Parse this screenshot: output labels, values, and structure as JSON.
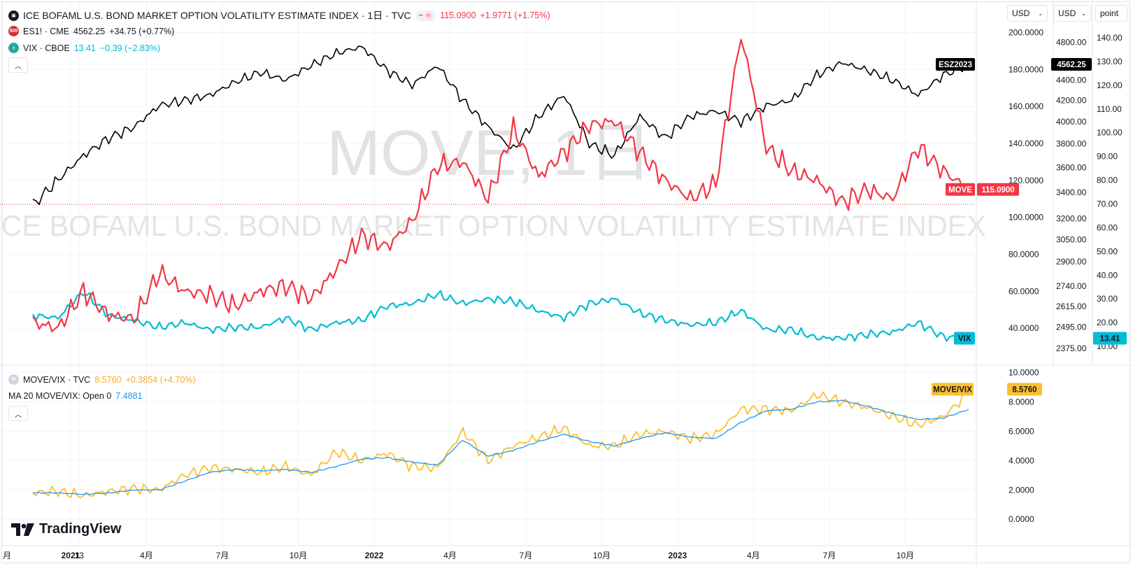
{
  "header": {
    "title": "ICE BOFAML U.S. BOND MARKET OPTION VOLATILITY ESTIMATE INDEX · 1日 · TVC",
    "main_value": "115.0900",
    "main_change": "+1.9771 (+1.75%)"
  },
  "watermark": {
    "big": "MOVE, 1日",
    "long": "ICE BOFAML U.S. BOND MARKET OPTION VOLATILITY ESTIMATE INDEX"
  },
  "legend": {
    "es": {
      "icon_text": "500",
      "name": "ES1! · CME",
      "value": "4562.25",
      "change": "+34.75 (+0.77%)"
    },
    "vix": {
      "name": "VIX · CBOE",
      "value": "13.41",
      "change": "−0.39 (−2.83%)"
    },
    "ratio": {
      "name": "MOVE/VIX · TVC",
      "value": "8.5760",
      "change": "+0.3854 (+4.70%)"
    },
    "ma": {
      "name": "MA 20 MOVE/VIX: Open 0",
      "value": "7.4881"
    }
  },
  "scales": {
    "currency_left": "USD",
    "currency_right": "USD",
    "points": "point"
  },
  "branding": {
    "name": "TradingView"
  },
  "colors": {
    "move": "#f23645",
    "es": "#000000",
    "vix": "#00bcd4",
    "ratio": "#fbc02d",
    "ma": "#2196f3",
    "grid": "#f0f3fa"
  },
  "chart_data": [
    {
      "type": "line",
      "title": "ICE BOFAML U.S. BOND MARKET OPTION VOLATILITY ESTIMATE INDEX · 1日 · TVC",
      "x_ticks": [
        "月",
        "13",
        "2021",
        "4月",
        "7月",
        "10月",
        "2022",
        "4月",
        "7月",
        "10月",
        "2023",
        "4月",
        "7月",
        "10月"
      ],
      "move_axis": {
        "ticks": [
          "200.0000",
          "180.0000",
          "160.0000",
          "140.0000",
          "120.0000",
          "100.0000",
          "80.0000",
          "60.0000",
          "40.0000"
        ],
        "range": [
          20,
          210
        ]
      },
      "es_axis": {
        "log": true,
        "ticks": [
          "4800.00",
          "4400.00",
          "4200.00",
          "4000.00",
          "3800.00",
          "3600.00",
          "3400.00",
          "3200.00",
          "3050.00",
          "2900.00",
          "2740.00",
          "2615.00",
          "2495.00",
          "2375.00"
        ]
      },
      "vix_axis": {
        "ticks": [
          "140.00",
          "130.00",
          "120.00",
          "110.00",
          "100.00",
          "90.00",
          "80.00",
          "70.00",
          "60.00",
          "50.00",
          "40.00",
          "30.00",
          "20.00",
          "10.00"
        ],
        "range": [
          5,
          145
        ]
      },
      "series": [
        {
          "name": "MOVE",
          "last_label": "115.0900",
          "values": [
            {
              "x": "2020-11",
              "y": 43
            },
            {
              "x": "2020-12",
              "y": 40
            },
            {
              "x": "2021-01",
              "y": 60
            },
            {
              "x": "2021-02",
              "y": 47
            },
            {
              "x": "2021-03",
              "y": 45
            },
            {
              "x": "2021-04",
              "y": 70
            },
            {
              "x": "2021-05",
              "y": 60
            },
            {
              "x": "2021-06",
              "y": 58
            },
            {
              "x": "2021-07",
              "y": 52
            },
            {
              "x": "2021-08",
              "y": 60
            },
            {
              "x": "2021-09",
              "y": 63
            },
            {
              "x": "2021-10",
              "y": 56
            },
            {
              "x": "2021-11",
              "y": 72
            },
            {
              "x": "2021-12",
              "y": 90
            },
            {
              "x": "2022-01",
              "y": 84
            },
            {
              "x": "2022-02",
              "y": 98
            },
            {
              "x": "2022-03",
              "y": 128
            },
            {
              "x": "2022-04",
              "y": 130
            },
            {
              "x": "2022-05",
              "y": 110
            },
            {
              "x": "2022-06",
              "y": 148
            },
            {
              "x": "2022-07",
              "y": 122
            },
            {
              "x": "2022-08",
              "y": 135
            },
            {
              "x": "2022-09",
              "y": 150
            },
            {
              "x": "2022-10",
              "y": 152
            },
            {
              "x": "2022-11",
              "y": 135
            },
            {
              "x": "2022-12",
              "y": 120
            },
            {
              "x": "2023-01",
              "y": 110
            },
            {
              "x": "2023-02",
              "y": 118
            },
            {
              "x": "2023-03",
              "y": 198
            },
            {
              "x": "2023-04",
              "y": 138
            },
            {
              "x": "2023-05",
              "y": 125
            },
            {
              "x": "2023-06",
              "y": 120
            },
            {
              "x": "2023-07",
              "y": 108
            },
            {
              "x": "2023-08",
              "y": 115
            },
            {
              "x": "2023-09",
              "y": 110
            },
            {
              "x": "2023-10",
              "y": 138
            },
            {
              "x": "2023-11",
              "y": 125
            },
            {
              "x": "2023-12",
              "y": 115.09
            }
          ]
        },
        {
          "name": "ESZ2023",
          "last_label": "4562.25",
          "values": [
            {
              "x": "2020-11",
              "y": 3300
            },
            {
              "x": "2020-12",
              "y": 3500
            },
            {
              "x": "2021-01",
              "y": 3700
            },
            {
              "x": "2021-02",
              "y": 3850
            },
            {
              "x": "2021-03",
              "y": 3950
            },
            {
              "x": "2021-04",
              "y": 4150
            },
            {
              "x": "2021-05",
              "y": 4200
            },
            {
              "x": "2021-06",
              "y": 4250
            },
            {
              "x": "2021-07",
              "y": 4380
            },
            {
              "x": "2021-08",
              "y": 4480
            },
            {
              "x": "2021-09",
              "y": 4400
            },
            {
              "x": "2021-10",
              "y": 4550
            },
            {
              "x": "2021-11",
              "y": 4680
            },
            {
              "x": "2021-12",
              "y": 4750
            },
            {
              "x": "2022-01",
              "y": 4500
            },
            {
              "x": "2022-02",
              "y": 4350
            },
            {
              "x": "2022-03",
              "y": 4550
            },
            {
              "x": "2022-04",
              "y": 4200
            },
            {
              "x": "2022-05",
              "y": 3950
            },
            {
              "x": "2022-06",
              "y": 3750
            },
            {
              "x": "2022-07",
              "y": 4050
            },
            {
              "x": "2022-08",
              "y": 4250
            },
            {
              "x": "2022-09",
              "y": 3800
            },
            {
              "x": "2022-10",
              "y": 3700
            },
            {
              "x": "2022-11",
              "y": 4050
            },
            {
              "x": "2022-12",
              "y": 3850
            },
            {
              "x": "2023-01",
              "y": 4050
            },
            {
              "x": "2023-02",
              "y": 4100
            },
            {
              "x": "2023-03",
              "y": 4000
            },
            {
              "x": "2023-04",
              "y": 4150
            },
            {
              "x": "2023-05",
              "y": 4200
            },
            {
              "x": "2023-06",
              "y": 4450
            },
            {
              "x": "2023-07",
              "y": 4580
            },
            {
              "x": "2023-08",
              "y": 4500
            },
            {
              "x": "2023-09",
              "y": 4400
            },
            {
              "x": "2023-10",
              "y": 4250
            },
            {
              "x": "2023-11",
              "y": 4450
            },
            {
              "x": "2023-12",
              "y": 4562.25
            }
          ]
        },
        {
          "name": "VIX",
          "last_label": "13.41",
          "values": [
            {
              "x": "2020-11",
              "y": 23
            },
            {
              "x": "2020-12",
              "y": 22
            },
            {
              "x": "2021-01",
              "y": 33
            },
            {
              "x": "2021-02",
              "y": 23
            },
            {
              "x": "2021-03",
              "y": 21
            },
            {
              "x": "2021-04",
              "y": 18
            },
            {
              "x": "2021-05",
              "y": 20
            },
            {
              "x": "2021-06",
              "y": 17
            },
            {
              "x": "2021-07",
              "y": 18
            },
            {
              "x": "2021-08",
              "y": 18
            },
            {
              "x": "2021-09",
              "y": 22
            },
            {
              "x": "2021-10",
              "y": 17
            },
            {
              "x": "2021-11",
              "y": 20
            },
            {
              "x": "2021-12",
              "y": 21
            },
            {
              "x": "2022-01",
              "y": 27
            },
            {
              "x": "2022-02",
              "y": 28
            },
            {
              "x": "2022-03",
              "y": 32
            },
            {
              "x": "2022-04",
              "y": 28
            },
            {
              "x": "2022-05",
              "y": 30
            },
            {
              "x": "2022-06",
              "y": 29
            },
            {
              "x": "2022-07",
              "y": 25
            },
            {
              "x": "2022-08",
              "y": 22
            },
            {
              "x": "2022-09",
              "y": 28
            },
            {
              "x": "2022-10",
              "y": 30
            },
            {
              "x": "2022-11",
              "y": 24
            },
            {
              "x": "2022-12",
              "y": 21
            },
            {
              "x": "2023-01",
              "y": 19
            },
            {
              "x": "2023-02",
              "y": 20
            },
            {
              "x": "2023-03",
              "y": 25
            },
            {
              "x": "2023-04",
              "y": 17
            },
            {
              "x": "2023-05",
              "y": 17
            },
            {
              "x": "2023-06",
              "y": 13.5
            },
            {
              "x": "2023-07",
              "y": 13.5
            },
            {
              "x": "2023-08",
              "y": 15
            },
            {
              "x": "2023-09",
              "y": 16
            },
            {
              "x": "2023-10",
              "y": 20
            },
            {
              "x": "2023-11",
              "y": 14
            },
            {
              "x": "2023-12",
              "y": 13.41
            }
          ]
        }
      ]
    },
    {
      "type": "line",
      "title": "MOVE/VIX · TVC",
      "x_ticks": [
        "月",
        "13",
        "2021",
        "4月",
        "7月",
        "10月",
        "2022",
        "4月",
        "7月",
        "10月",
        "2023",
        "4月",
        "7月",
        "10月"
      ],
      "y_ticks": [
        "10.0000",
        "8.0000",
        "6.0000",
        "4.0000",
        "2.0000",
        "0.0000"
      ],
      "ylim": [
        -1.8,
        10.5
      ],
      "series": [
        {
          "name": "MOVE/VIX",
          "last_label": "8.5760",
          "values": [
            {
              "x": "2020-11",
              "y": 1.8
            },
            {
              "x": "2020-12",
              "y": 1.9
            },
            {
              "x": "2021-01",
              "y": 1.6
            },
            {
              "x": "2021-02",
              "y": 1.9
            },
            {
              "x": "2021-03",
              "y": 2.1
            },
            {
              "x": "2021-04",
              "y": 2.0
            },
            {
              "x": "2021-05",
              "y": 3.0
            },
            {
              "x": "2021-06",
              "y": 3.5
            },
            {
              "x": "2021-07",
              "y": 3.4
            },
            {
              "x": "2021-08",
              "y": 3.2
            },
            {
              "x": "2021-09",
              "y": 3.6
            },
            {
              "x": "2021-10",
              "y": 3.0
            },
            {
              "x": "2021-11",
              "y": 4.6
            },
            {
              "x": "2021-12",
              "y": 4.0
            },
            {
              "x": "2022-01",
              "y": 4.5
            },
            {
              "x": "2022-02",
              "y": 3.6
            },
            {
              "x": "2022-03",
              "y": 3.5
            },
            {
              "x": "2022-04",
              "y": 6.0
            },
            {
              "x": "2022-05",
              "y": 4.0
            },
            {
              "x": "2022-06",
              "y": 5.0
            },
            {
              "x": "2022-07",
              "y": 5.6
            },
            {
              "x": "2022-08",
              "y": 6.2
            },
            {
              "x": "2022-09",
              "y": 5.0
            },
            {
              "x": "2022-10",
              "y": 5.0
            },
            {
              "x": "2022-11",
              "y": 5.8
            },
            {
              "x": "2022-12",
              "y": 6.0
            },
            {
              "x": "2023-01",
              "y": 5.5
            },
            {
              "x": "2023-02",
              "y": 5.8
            },
            {
              "x": "2023-03",
              "y": 7.5
            },
            {
              "x": "2023-04",
              "y": 7.5
            },
            {
              "x": "2023-05",
              "y": 7.4
            },
            {
              "x": "2023-06",
              "y": 8.5
            },
            {
              "x": "2023-07",
              "y": 8.0
            },
            {
              "x": "2023-08",
              "y": 7.6
            },
            {
              "x": "2023-09",
              "y": 7.0
            },
            {
              "x": "2023-10",
              "y": 6.4
            },
            {
              "x": "2023-11",
              "y": 7.0
            },
            {
              "x": "2023-12",
              "y": 8.576
            }
          ]
        },
        {
          "name": "MA 20 MOVE/VIX",
          "values": [
            {
              "x": "2020-11",
              "y": 1.8
            },
            {
              "x": "2020-12",
              "y": 1.8
            },
            {
              "x": "2021-01",
              "y": 1.7
            },
            {
              "x": "2021-02",
              "y": 1.8
            },
            {
              "x": "2021-03",
              "y": 2.0
            },
            {
              "x": "2021-04",
              "y": 2.0
            },
            {
              "x": "2021-05",
              "y": 2.6
            },
            {
              "x": "2021-06",
              "y": 3.2
            },
            {
              "x": "2021-07",
              "y": 3.4
            },
            {
              "x": "2021-08",
              "y": 3.3
            },
            {
              "x": "2021-09",
              "y": 3.4
            },
            {
              "x": "2021-10",
              "y": 3.2
            },
            {
              "x": "2021-11",
              "y": 3.6
            },
            {
              "x": "2021-12",
              "y": 4.1
            },
            {
              "x": "2022-01",
              "y": 4.2
            },
            {
              "x": "2022-02",
              "y": 3.9
            },
            {
              "x": "2022-03",
              "y": 3.7
            },
            {
              "x": "2022-04",
              "y": 5.4
            },
            {
              "x": "2022-05",
              "y": 4.3
            },
            {
              "x": "2022-06",
              "y": 4.7
            },
            {
              "x": "2022-07",
              "y": 5.3
            },
            {
              "x": "2022-08",
              "y": 5.8
            },
            {
              "x": "2022-09",
              "y": 5.3
            },
            {
              "x": "2022-10",
              "y": 5.0
            },
            {
              "x": "2022-11",
              "y": 5.5
            },
            {
              "x": "2022-12",
              "y": 5.9
            },
            {
              "x": "2023-01",
              "y": 5.6
            },
            {
              "x": "2023-02",
              "y": 5.5
            },
            {
              "x": "2023-03",
              "y": 6.6
            },
            {
              "x": "2023-04",
              "y": 7.4
            },
            {
              "x": "2023-05",
              "y": 7.5
            },
            {
              "x": "2023-06",
              "y": 8.0
            },
            {
              "x": "2023-07",
              "y": 8.1
            },
            {
              "x": "2023-08",
              "y": 7.7
            },
            {
              "x": "2023-09",
              "y": 7.2
            },
            {
              "x": "2023-10",
              "y": 6.8
            },
            {
              "x": "2023-11",
              "y": 6.9
            },
            {
              "x": "2023-12",
              "y": 7.4881
            }
          ]
        }
      ]
    }
  ]
}
